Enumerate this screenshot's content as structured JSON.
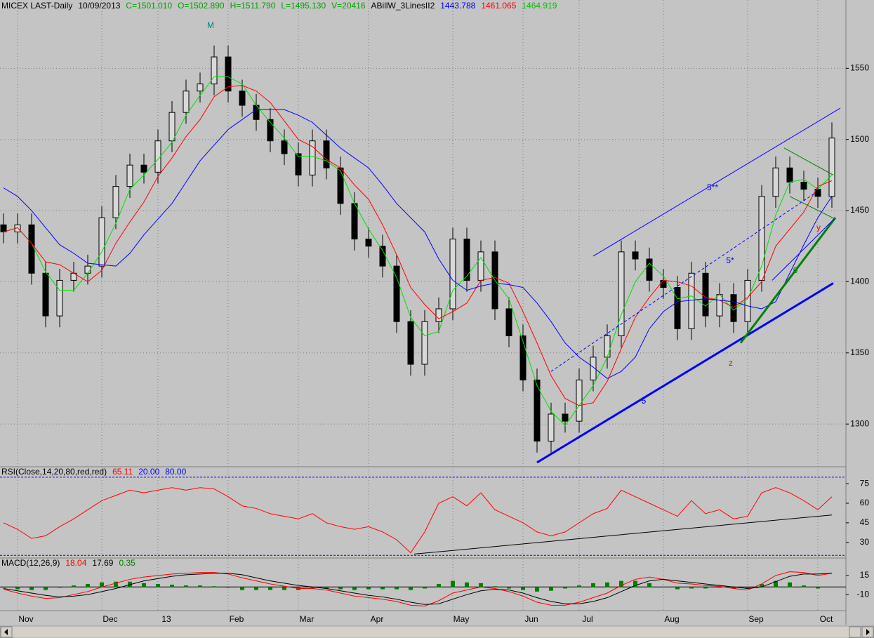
{
  "chart_data": [
    {
      "type": "candlestick",
      "header": [
        {
          "text": "MICEX LAST-Daily",
          "color": "#000000"
        },
        {
          "text": "10/09/2013",
          "color": "#000000"
        },
        {
          "text": "C=1501.010",
          "color": "#00a000"
        },
        {
          "text": "O=1502.890",
          "color": "#00a000"
        },
        {
          "text": "H=1511.790",
          "color": "#00a000"
        },
        {
          "text": "L=1495.130",
          "color": "#00a000"
        },
        {
          "text": "V=20416",
          "color": "#00a000"
        },
        {
          "text": "ABillW_3LinesII2",
          "color": "#000000"
        },
        {
          "text": "1443.788",
          "color": "#0000ff"
        },
        {
          "text": "1461.065",
          "color": "#ff0000"
        },
        {
          "text": "1464.919",
          "color": "#00c000"
        }
      ],
      "categories": [
        null,
        "Nov",
        null,
        null,
        null,
        null,
        null,
        "Dec",
        null,
        null,
        null,
        "13",
        null,
        null,
        null,
        null,
        "Feb",
        null,
        null,
        null,
        null,
        "Mar",
        null,
        null,
        null,
        null,
        "Apr",
        null,
        null,
        null,
        null,
        null,
        "May",
        null,
        null,
        null,
        null,
        "Jun",
        null,
        null,
        null,
        "Jul",
        null,
        null,
        null,
        null,
        null,
        "Aug",
        null,
        null,
        null,
        null,
        null,
        "Sep",
        null,
        null,
        null,
        null,
        "Oct",
        null
      ],
      "open": [
        1440,
        1435,
        1440,
        1406,
        1376,
        1401,
        1406,
        1411,
        1445,
        1467,
        1482,
        1477,
        1499,
        1519,
        1534,
        1539,
        1558,
        1534,
        1524,
        1514,
        1499,
        1490,
        1475,
        1499,
        1480,
        1455,
        1430,
        1425,
        1411,
        1372,
        1342,
        1372,
        1381,
        1430,
        1401,
        1421,
        1381,
        1362,
        1331,
        1288,
        1307,
        1302,
        1331,
        1347,
        1362,
        1421,
        1416,
        1401,
        1396,
        1367,
        1406,
        1376,
        1391,
        1372,
        1401,
        1460,
        1480,
        1470,
        1465,
        1460
      ],
      "high": [
        1448,
        1448,
        1448,
        1414,
        1409,
        1414,
        1419,
        1453,
        1475,
        1490,
        1490,
        1507,
        1527,
        1542,
        1547,
        1566,
        1566,
        1542,
        1532,
        1522,
        1507,
        1498,
        1507,
        1507,
        1488,
        1463,
        1438,
        1433,
        1419,
        1380,
        1380,
        1389,
        1438,
        1438,
        1429,
        1429,
        1389,
        1370,
        1339,
        1315,
        1315,
        1339,
        1355,
        1370,
        1429,
        1429,
        1424,
        1409,
        1404,
        1414,
        1414,
        1399,
        1399,
        1409,
        1468,
        1488,
        1488,
        1478,
        1473,
        1512
      ],
      "low": [
        1427,
        1427,
        1398,
        1368,
        1368,
        1393,
        1398,
        1403,
        1437,
        1459,
        1469,
        1469,
        1491,
        1511,
        1526,
        1531,
        1526,
        1516,
        1506,
        1491,
        1482,
        1467,
        1467,
        1472,
        1447,
        1422,
        1417,
        1403,
        1364,
        1334,
        1334,
        1364,
        1373,
        1393,
        1393,
        1373,
        1354,
        1323,
        1280,
        1280,
        1294,
        1294,
        1323,
        1339,
        1354,
        1408,
        1393,
        1388,
        1359,
        1359,
        1368,
        1368,
        1364,
        1364,
        1393,
        1452,
        1462,
        1457,
        1452,
        1452
      ],
      "close": [
        1435,
        1440,
        1406,
        1376,
        1401,
        1406,
        1411,
        1445,
        1467,
        1482,
        1477,
        1499,
        1519,
        1534,
        1539,
        1558,
        1534,
        1524,
        1514,
        1499,
        1490,
        1475,
        1499,
        1480,
        1455,
        1430,
        1425,
        1411,
        1372,
        1342,
        1372,
        1381,
        1430,
        1401,
        1421,
        1381,
        1362,
        1331,
        1288,
        1307,
        1302,
        1331,
        1347,
        1362,
        1421,
        1416,
        1401,
        1396,
        1367,
        1406,
        1376,
        1391,
        1372,
        1401,
        1460,
        1480,
        1470,
        1465,
        1460,
        1501
      ],
      "candle_colors": {
        "up": "#d8d8d8",
        "down": "#000000"
      },
      "series": [
        {
          "color": "#00e000",
          "values": [
            1435,
            1438,
            1427,
            1407,
            1394,
            1394,
            1406,
            1421,
            1441,
            1465,
            1475,
            1486,
            1498,
            1517,
            1531,
            1544,
            1544,
            1539,
            1524,
            1512,
            1501,
            1488,
            1488,
            1485,
            1478,
            1455,
            1437,
            1422,
            1403,
            1375,
            1362,
            1365,
            1394,
            1404,
            1417,
            1401,
            1388,
            1358,
            1327,
            1309,
            1299,
            1313,
            1327,
            1347,
            1377,
            1400,
            1413,
            1404,
            1388,
            1390,
            1383,
            1391,
            1380,
            1388,
            1411,
            1447,
            1470,
            1472,
            1465,
            1475
          ]
        },
        {
          "color": "#ff0000",
          "values": [
            1435,
            1438,
            1427,
            1414,
            1412,
            1406,
            1400,
            1408,
            1427,
            1442,
            1456,
            1474,
            1487,
            1502,
            1514,
            1530,
            1537,
            1538,
            1534,
            1526,
            1513,
            1500,
            1495,
            1486,
            1480,
            1468,
            1458,
            1440,
            1419,
            1396,
            1384,
            1374,
            1379,
            1385,
            1401,
            1403,
            1399,
            1379,
            1357,
            1334,
            1318,
            1313,
            1315,
            1330,
            1353,
            1375,
            1389,
            1401,
            1400,
            1397,
            1389,
            1387,
            1382,
            1389,
            1400,
            1425,
            1437,
            1449,
            1467,
            1471
          ]
        },
        {
          "color": "#0000ff",
          "values": [
            1466,
            1460,
            1450,
            1438,
            1426,
            1420,
            1413,
            1412,
            1411,
            1420,
            1433,
            1444,
            1455,
            1470,
            1485,
            1496,
            1507,
            1514,
            1521,
            1521,
            1521,
            1517,
            1512,
            1503,
            1494,
            1487,
            1480,
            1468,
            1455,
            1445,
            1435,
            1416,
            1401,
            1394,
            1397,
            1399,
            1398,
            1396,
            1385,
            1372,
            1357,
            1347,
            1340,
            1332,
            1337,
            1347,
            1367,
            1379,
            1386,
            1387,
            1388,
            1387,
            1386,
            1383,
            1381,
            1386,
            1406,
            1426,
            1445,
            1460
          ]
        }
      ],
      "lines": [
        {
          "color": "#0000ff",
          "width": 3,
          "dash": false,
          "x": [
            38,
            59.1
          ],
          "y": [
            1273,
            1399
          ]
        },
        {
          "color": "#0000ff",
          "width": 1,
          "dash": false,
          "x": [
            42,
            59.6
          ],
          "y": [
            1418,
            1522
          ]
        },
        {
          "color": "#0000ff",
          "width": 1,
          "dash": true,
          "x": [
            39,
            57.75
          ],
          "y": [
            1337,
            1462
          ]
        },
        {
          "color": "#008000",
          "width": 3,
          "dash": false,
          "x": [
            52.5,
            59.25
          ],
          "y": [
            1357,
            1445
          ]
        },
        {
          "color": "#0000ff",
          "width": 1,
          "dash": false,
          "x": [
            54.75,
            59.25
          ],
          "y": [
            1401,
            1445
          ]
        },
        {
          "color": "#008000",
          "width": 1,
          "dash": false,
          "x": [
            55.6,
            59.1
          ],
          "y": [
            1494,
            1475
          ]
        },
        {
          "color": "#008000",
          "width": 1,
          "dash": false,
          "x": [
            56,
            59.25
          ],
          "y": [
            1460,
            1444
          ]
        }
      ],
      "annotations": [
        {
          "text": "M",
          "color": "#008080"
        },
        {
          "text": "5",
          "color": "#0000ff"
        },
        {
          "text": "z",
          "color": "#ff0000"
        },
        {
          "text": "6",
          "color": "#008000"
        },
        {
          "text": "y",
          "color": "#ff0000"
        },
        {
          "text": "5**",
          "color": "#0000ff"
        },
        {
          "text": "5*",
          "color": "#0000ff"
        }
      ],
      "ylim": [
        1270,
        1598
      ],
      "yticks": [
        1300,
        1350,
        1400,
        1450,
        1500,
        1550
      ],
      "grid": true
    },
    {
      "type": "line",
      "header": [
        {
          "text": "RSI(Close,14,20,80,red,red)",
          "color": "#000000"
        },
        {
          "text": "65.11",
          "color": "#ff0000"
        },
        {
          "text": "20.00",
          "color": "#0000ff"
        },
        {
          "text": "80.00",
          "color": "#0000ff"
        }
      ],
      "series": [
        {
          "color": "#ff0000",
          "values": [
            45,
            40,
            33,
            35,
            42,
            48,
            55,
            62,
            66,
            70,
            68,
            70,
            72,
            70,
            72,
            71,
            65,
            58,
            56,
            52,
            50,
            48,
            52,
            45,
            42,
            40,
            42,
            38,
            32,
            22,
            38,
            60,
            65,
            58,
            68,
            55,
            50,
            45,
            38,
            35,
            38,
            45,
            52,
            56,
            70,
            65,
            60,
            55,
            50,
            62,
            52,
            55,
            48,
            50,
            68,
            72,
            68,
            62,
            55,
            65
          ]
        }
      ],
      "levels": [
        20,
        80
      ],
      "lines": [
        {
          "color": "#000000",
          "width": 1,
          "dash": false,
          "x": [
            29.25,
            59
          ],
          "y": [
            21,
            51
          ]
        }
      ],
      "ylim": [
        18,
        88
      ],
      "yticks": [
        30,
        45,
        60,
        75
      ]
    },
    {
      "type": "macd",
      "header": [
        {
          "text": "MACD(12,26,9)",
          "color": "#000000"
        },
        {
          "text": "18.04",
          "color": "#ff0000"
        },
        {
          "text": "17.69",
          "color": "#000000"
        },
        {
          "text": "0.35",
          "color": "#008000"
        }
      ],
      "series": [
        {
          "color": "#ff0000",
          "values": [
            -3,
            -8,
            -12,
            -15,
            -14,
            -10,
            -6,
            0,
            5,
            10,
            13,
            15,
            17,
            18,
            19,
            19,
            17,
            12,
            8,
            4,
            1,
            -2,
            -2,
            -4,
            -8,
            -12,
            -14,
            -16,
            -19,
            -24,
            -25,
            -18,
            -8,
            -4,
            0,
            -2,
            -6,
            -12,
            -20,
            -24,
            -24,
            -20,
            -14,
            -8,
            2,
            10,
            13,
            10,
            5,
            4,
            2,
            1,
            -2,
            -4,
            4,
            15,
            20,
            19,
            15,
            18
          ]
        },
        {
          "color": "#000000",
          "values": [
            -2,
            -5,
            -8,
            -11,
            -13,
            -12,
            -10,
            -6,
            -2,
            3,
            8,
            11,
            14,
            16,
            17,
            18,
            18,
            16,
            12,
            8,
            5,
            2,
            0,
            -2,
            -5,
            -8,
            -11,
            -13,
            -16,
            -20,
            -23,
            -22,
            -16,
            -10,
            -5,
            -3,
            -4,
            -8,
            -14,
            -19,
            -22,
            -22,
            -19,
            -14,
            -6,
            2,
            8,
            10,
            8,
            6,
            4,
            2,
            0,
            -2,
            0,
            7,
            14,
            17,
            17,
            18
          ]
        }
      ],
      "histogram": {
        "color": "#008000",
        "values": [
          -1,
          -3,
          -4,
          -4,
          -1,
          2,
          4,
          6,
          7,
          7,
          5,
          4,
          3,
          2,
          2,
          1,
          -1,
          -4,
          -4,
          -4,
          -4,
          -4,
          -2,
          -2,
          -3,
          -4,
          -3,
          -3,
          -3,
          -4,
          -2,
          4,
          8,
          6,
          5,
          1,
          -2,
          -4,
          -6,
          -5,
          -2,
          2,
          5,
          6,
          8,
          8,
          5,
          0,
          -3,
          -2,
          -2,
          -1,
          -2,
          -2,
          4,
          8,
          6,
          2,
          -2,
          0
        ]
      },
      "levels": [
        0
      ],
      "ylim": [
        -31,
        38
      ],
      "yticks": [
        15,
        -10
      ]
    }
  ]
}
